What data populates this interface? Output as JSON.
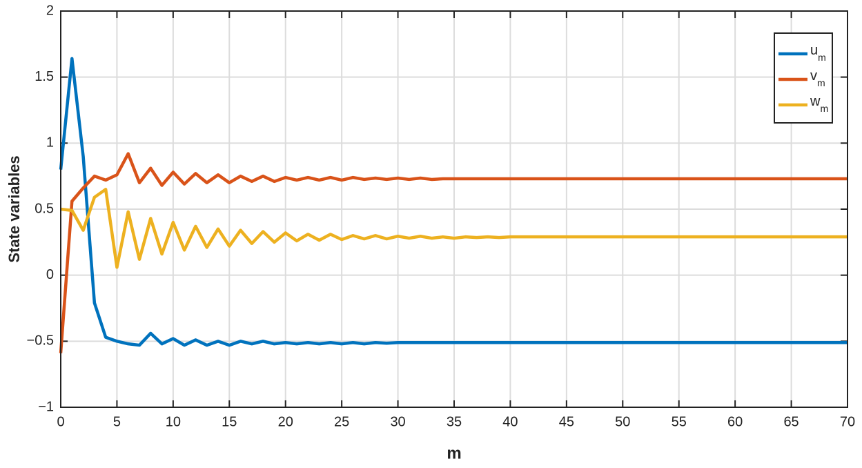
{
  "chart_data": {
    "type": "line",
    "xlabel": "m",
    "ylabel": "State variables",
    "x": [
      0,
      1,
      2,
      3,
      4,
      5,
      6,
      7,
      8,
      9,
      10,
      11,
      12,
      13,
      14,
      15,
      16,
      17,
      18,
      19,
      20,
      21,
      22,
      23,
      24,
      25,
      26,
      27,
      28,
      29,
      30,
      31,
      32,
      33,
      34,
      35,
      36,
      37,
      38,
      39,
      40,
      41,
      42,
      43,
      44,
      45,
      46,
      47,
      48,
      49,
      50,
      51,
      52,
      53,
      54,
      55,
      56,
      57,
      58,
      59,
      60,
      61,
      62,
      63,
      64,
      65,
      66,
      67,
      68,
      69,
      70
    ],
    "series": [
      {
        "name": "um",
        "color": "#0072bd",
        "values": [
          0.8,
          1.64,
          0.9,
          -0.21,
          -0.47,
          -0.5,
          -0.52,
          -0.53,
          -0.44,
          -0.52,
          -0.48,
          -0.53,
          -0.49,
          -0.53,
          -0.5,
          -0.53,
          -0.5,
          -0.52,
          -0.5,
          -0.52,
          -0.51,
          -0.52,
          -0.51,
          -0.52,
          -0.51,
          -0.52,
          -0.51,
          -0.52,
          -0.51,
          -0.515,
          -0.51,
          -0.51,
          -0.51,
          -0.51,
          -0.51,
          -0.51,
          -0.51,
          -0.51,
          -0.51,
          -0.51,
          -0.51,
          -0.51,
          -0.51,
          -0.51,
          -0.51,
          -0.51,
          -0.51,
          -0.51,
          -0.51,
          -0.51,
          -0.51,
          -0.51,
          -0.51,
          -0.51,
          -0.51,
          -0.51,
          -0.51,
          -0.51,
          -0.51,
          -0.51,
          -0.51,
          -0.51,
          -0.51,
          -0.51,
          -0.51,
          -0.51,
          -0.51,
          -0.51,
          -0.51,
          -0.51,
          -0.51
        ]
      },
      {
        "name": "vm",
        "color": "#d95319",
        "values": [
          -0.59,
          0.56,
          0.66,
          0.75,
          0.72,
          0.76,
          0.92,
          0.7,
          0.81,
          0.68,
          0.78,
          0.69,
          0.77,
          0.7,
          0.76,
          0.7,
          0.75,
          0.71,
          0.75,
          0.71,
          0.74,
          0.72,
          0.74,
          0.72,
          0.74,
          0.72,
          0.74,
          0.725,
          0.735,
          0.725,
          0.735,
          0.725,
          0.735,
          0.725,
          0.73,
          0.73,
          0.73,
          0.73,
          0.73,
          0.73,
          0.73,
          0.73,
          0.73,
          0.73,
          0.73,
          0.73,
          0.73,
          0.73,
          0.73,
          0.73,
          0.73,
          0.73,
          0.73,
          0.73,
          0.73,
          0.73,
          0.73,
          0.73,
          0.73,
          0.73,
          0.73,
          0.73,
          0.73,
          0.73,
          0.73,
          0.73,
          0.73,
          0.73,
          0.73,
          0.73,
          0.73
        ]
      },
      {
        "name": "wm",
        "color": "#edb120",
        "values": [
          0.5,
          0.49,
          0.34,
          0.59,
          0.65,
          0.06,
          0.48,
          0.12,
          0.43,
          0.16,
          0.4,
          0.19,
          0.37,
          0.21,
          0.35,
          0.22,
          0.34,
          0.24,
          0.33,
          0.25,
          0.32,
          0.26,
          0.31,
          0.265,
          0.31,
          0.27,
          0.3,
          0.275,
          0.3,
          0.275,
          0.295,
          0.28,
          0.295,
          0.28,
          0.29,
          0.28,
          0.29,
          0.285,
          0.29,
          0.285,
          0.29,
          0.29,
          0.29,
          0.29,
          0.29,
          0.29,
          0.29,
          0.29,
          0.29,
          0.29,
          0.29,
          0.29,
          0.29,
          0.29,
          0.29,
          0.29,
          0.29,
          0.29,
          0.29,
          0.29,
          0.29,
          0.29,
          0.29,
          0.29,
          0.29,
          0.29,
          0.29,
          0.29,
          0.29,
          0.29,
          0.29
        ]
      }
    ],
    "xlim": [
      0,
      70
    ],
    "xticks": [
      0,
      5,
      10,
      15,
      20,
      25,
      30,
      35,
      40,
      45,
      50,
      55,
      60,
      65,
      70
    ],
    "ylim": [
      -1,
      2
    ],
    "yticks": [
      {
        "value": -1,
        "label": "−1"
      },
      {
        "value": -0.5,
        "label": "−0.5"
      },
      0,
      0.5,
      1,
      1.5,
      2
    ],
    "grid": true,
    "legend": "upper right"
  }
}
